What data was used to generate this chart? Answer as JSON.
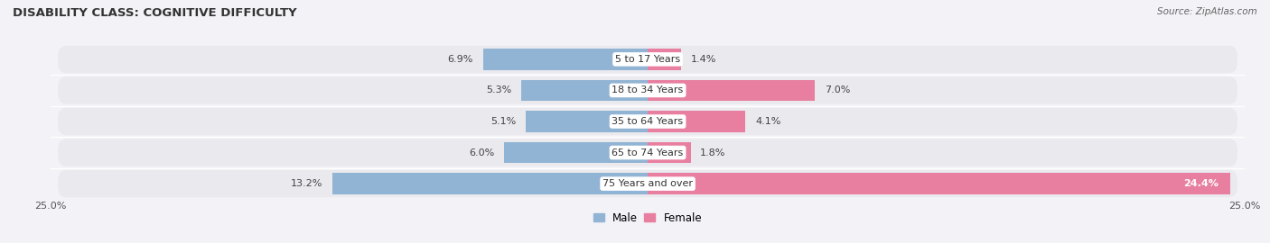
{
  "title": "DISABILITY CLASS: COGNITIVE DIFFICULTY",
  "source": "Source: ZipAtlas.com",
  "categories": [
    "5 to 17 Years",
    "18 to 34 Years",
    "35 to 64 Years",
    "65 to 74 Years",
    "75 Years and over"
  ],
  "male_values": [
    6.9,
    5.3,
    5.1,
    6.0,
    13.2
  ],
  "female_values": [
    1.4,
    7.0,
    4.1,
    1.8,
    24.4
  ],
  "x_max": 25.0,
  "male_color": "#92b4d4",
  "female_color": "#e87fa0",
  "row_bg_color": "#e9e9ee",
  "fig_bg_color": "#f2f2f7",
  "title_fontsize": 9.5,
  "label_fontsize": 8.0,
  "tick_fontsize": 8.0,
  "legend_fontsize": 8.5,
  "value_fontsize": 8.0
}
